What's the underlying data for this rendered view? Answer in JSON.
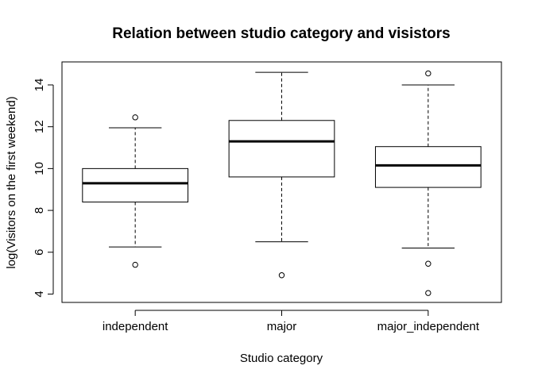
{
  "chart_data": {
    "type": "boxplot",
    "title": "Relation between studio category and visistors",
    "xlabel": "Studio category",
    "ylabel": "log(Visitors on the first weekend)",
    "ylim": [
      3.6,
      15.1
    ],
    "yticks": [
      4,
      6,
      8,
      10,
      12,
      14
    ],
    "grid": false,
    "categories": [
      "independent",
      "major",
      "major_independent"
    ],
    "boxes": [
      {
        "category": "independent",
        "whisker_low": 6.25,
        "q1": 8.4,
        "median": 9.3,
        "q3": 10.0,
        "whisker_high": 11.95,
        "outliers": [
          12.45,
          5.4
        ]
      },
      {
        "category": "major",
        "whisker_low": 6.5,
        "q1": 9.6,
        "median": 11.3,
        "q3": 12.3,
        "whisker_high": 14.6,
        "outliers": [
          4.9
        ]
      },
      {
        "category": "major_independent",
        "whisker_low": 6.2,
        "q1": 9.1,
        "median": 10.15,
        "q3": 11.05,
        "whisker_high": 14.0,
        "outliers": [
          14.55,
          5.45,
          4.05
        ]
      }
    ]
  }
}
